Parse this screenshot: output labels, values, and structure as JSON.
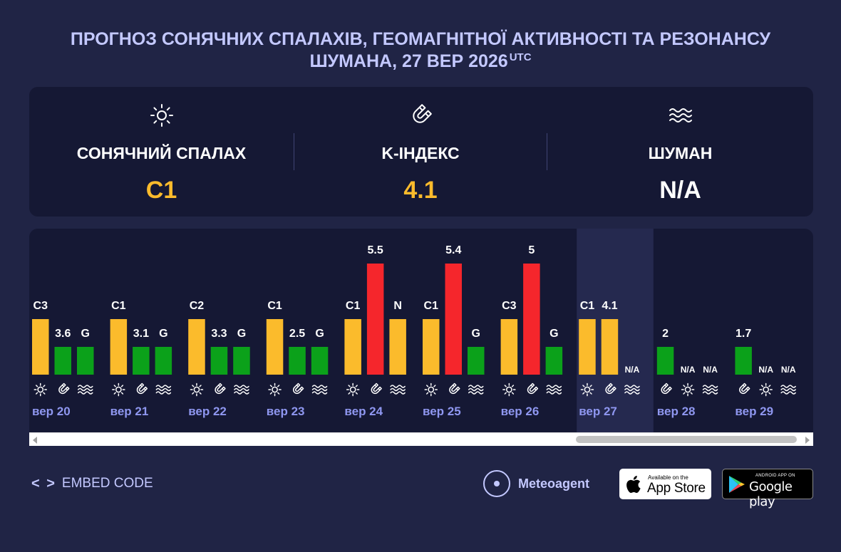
{
  "title": {
    "line1": "ПРОГНОЗ СОНЯЧНИХ СПАЛАХІВ, ГЕОМАГНІТНОЇ АКТИВНОСТІ ТА РЕЗОНАНСУ",
    "line2": "ШУМАНА, 27 ВЕР 2026",
    "utc": "UTC"
  },
  "summary": {
    "flare": {
      "icon": "sun-icon",
      "label": "СОНЯЧНИЙ СПАЛАХ",
      "value": "C1",
      "color": "#fbbb2c"
    },
    "kindex": {
      "icon": "magnet-icon",
      "label": "K-ІНДЕКС",
      "value": "4.1",
      "color": "#fbbb2c"
    },
    "schumann": {
      "icon": "waves-icon",
      "label": "ШУМАН",
      "value": "N/A",
      "color": "#ffffff"
    }
  },
  "colors": {
    "yellow": "#fbbb2c",
    "green": "#0ba11a",
    "red": "#f5262c",
    "panel": "#151834",
    "highlight": "#25294f",
    "background": "#202445",
    "accent_text": "#c3c8ff"
  },
  "chart_data": {
    "type": "bar",
    "days": [
      {
        "label": "вер 20",
        "icons": [
          "sun-icon",
          "magnet-icon",
          "waves-icon"
        ],
        "bars": [
          {
            "text": "C3",
            "level": 2,
            "color": "yellow"
          },
          {
            "text": "3.6",
            "level": 1,
            "color": "green"
          },
          {
            "text": "G",
            "level": 1,
            "color": "green"
          }
        ]
      },
      {
        "label": "вер 21",
        "icons": [
          "sun-icon",
          "magnet-icon",
          "waves-icon"
        ],
        "bars": [
          {
            "text": "C1",
            "level": 2,
            "color": "yellow"
          },
          {
            "text": "3.1",
            "level": 1,
            "color": "green"
          },
          {
            "text": "G",
            "level": 1,
            "color": "green"
          }
        ]
      },
      {
        "label": "вер 22",
        "icons": [
          "sun-icon",
          "magnet-icon",
          "waves-icon"
        ],
        "bars": [
          {
            "text": "C2",
            "level": 2,
            "color": "yellow"
          },
          {
            "text": "3.3",
            "level": 1,
            "color": "green"
          },
          {
            "text": "G",
            "level": 1,
            "color": "green"
          }
        ]
      },
      {
        "label": "вер 23",
        "icons": [
          "sun-icon",
          "magnet-icon",
          "waves-icon"
        ],
        "bars": [
          {
            "text": "C1",
            "level": 2,
            "color": "yellow"
          },
          {
            "text": "2.5",
            "level": 1,
            "color": "green"
          },
          {
            "text": "G",
            "level": 1,
            "color": "green"
          }
        ]
      },
      {
        "label": "вер 24",
        "icons": [
          "sun-icon",
          "magnet-icon",
          "waves-icon"
        ],
        "bars": [
          {
            "text": "C1",
            "level": 2,
            "color": "yellow"
          },
          {
            "text": "5.5",
            "level": 4,
            "color": "red"
          },
          {
            "text": "N",
            "level": 2,
            "color": "yellow"
          }
        ]
      },
      {
        "label": "вер 25",
        "icons": [
          "sun-icon",
          "magnet-icon",
          "waves-icon"
        ],
        "bars": [
          {
            "text": "C1",
            "level": 2,
            "color": "yellow"
          },
          {
            "text": "5.4",
            "level": 4,
            "color": "red"
          },
          {
            "text": "G",
            "level": 1,
            "color": "green"
          }
        ]
      },
      {
        "label": "вер 26",
        "icons": [
          "sun-icon",
          "magnet-icon",
          "waves-icon"
        ],
        "bars": [
          {
            "text": "C3",
            "level": 2,
            "color": "yellow"
          },
          {
            "text": "5",
            "level": 4,
            "color": "red"
          },
          {
            "text": "G",
            "level": 1,
            "color": "green"
          }
        ]
      },
      {
        "label": "вер 27",
        "highlight": true,
        "icons": [
          "sun-icon",
          "magnet-icon",
          "waves-icon"
        ],
        "bars": [
          {
            "text": "C1",
            "level": 2,
            "color": "yellow"
          },
          {
            "text": "4.1",
            "level": 2,
            "color": "yellow"
          },
          {
            "text": "N/A",
            "level": 0,
            "color": "none"
          }
        ]
      },
      {
        "label": "вер 28",
        "icons": [
          "magnet-icon",
          "sun-icon",
          "waves-icon"
        ],
        "bars": [
          {
            "text": "2",
            "level": 1,
            "color": "green"
          },
          {
            "text": "N/A",
            "level": 0,
            "color": "none"
          },
          {
            "text": "N/A",
            "level": 0,
            "color": "none"
          }
        ]
      },
      {
        "label": "вер 29",
        "icons": [
          "magnet-icon",
          "sun-icon",
          "waves-icon"
        ],
        "bars": [
          {
            "text": "1.7",
            "level": 1,
            "color": "green"
          },
          {
            "text": "N/A",
            "level": 0,
            "color": "none"
          },
          {
            "text": "N/A",
            "level": 0,
            "color": "none"
          }
        ]
      }
    ]
  },
  "footer": {
    "embed_label": "EMBED CODE",
    "brand": "Meteoagent",
    "appstore_small": "Available on the",
    "appstore_big": "App Store",
    "gplay_small": "ANDROID APP ON",
    "gplay_big": "Google play"
  }
}
